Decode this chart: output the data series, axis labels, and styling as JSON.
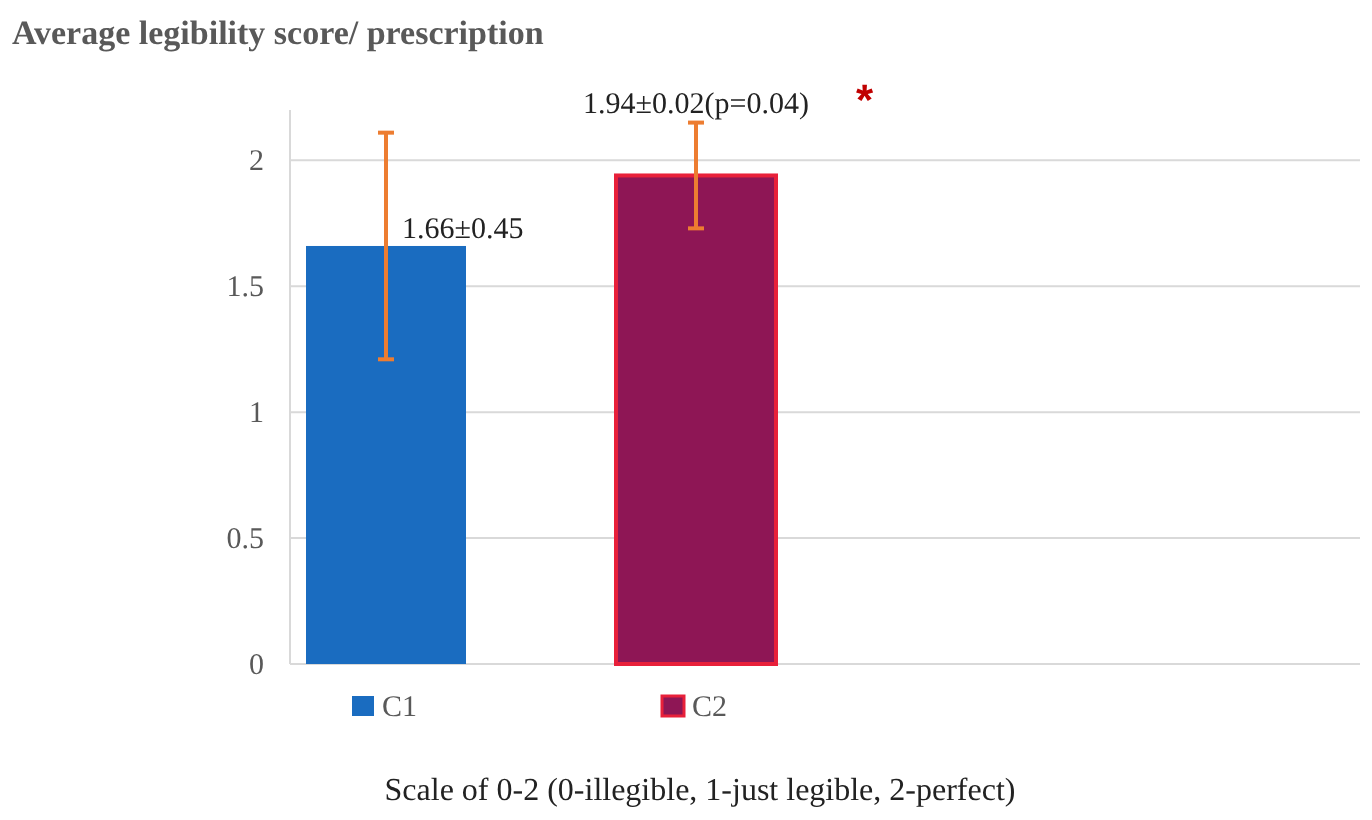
{
  "chart_data": {
    "type": "bar",
    "title": "Average legibility score/ prescription",
    "xlabel": "Scale of 0-2 (0-illegible, 1-just legible, 2-perfect)",
    "categories": [
      null
    ],
    "series": [
      {
        "name": "C1",
        "color": "#1a6cc0",
        "values": [
          1.66
        ],
        "errors": [
          [
            1.21,
            2.11
          ]
        ],
        "value_labels": [
          "1.66±0.45"
        ]
      },
      {
        "name": "C2",
        "color": "#8e1655",
        "values": [
          1.94
        ],
        "errors": [
          [
            1.73,
            2.15
          ]
        ],
        "value_labels": [
          "1.94±0.02(p=0.04)"
        ]
      }
    ],
    "annotations": [
      "*"
    ],
    "ylim": [
      0,
      2.2
    ],
    "yticks": [
      0,
      0.5,
      1,
      1.5,
      2
    ],
    "grid": "y",
    "legend": "bottom"
  }
}
